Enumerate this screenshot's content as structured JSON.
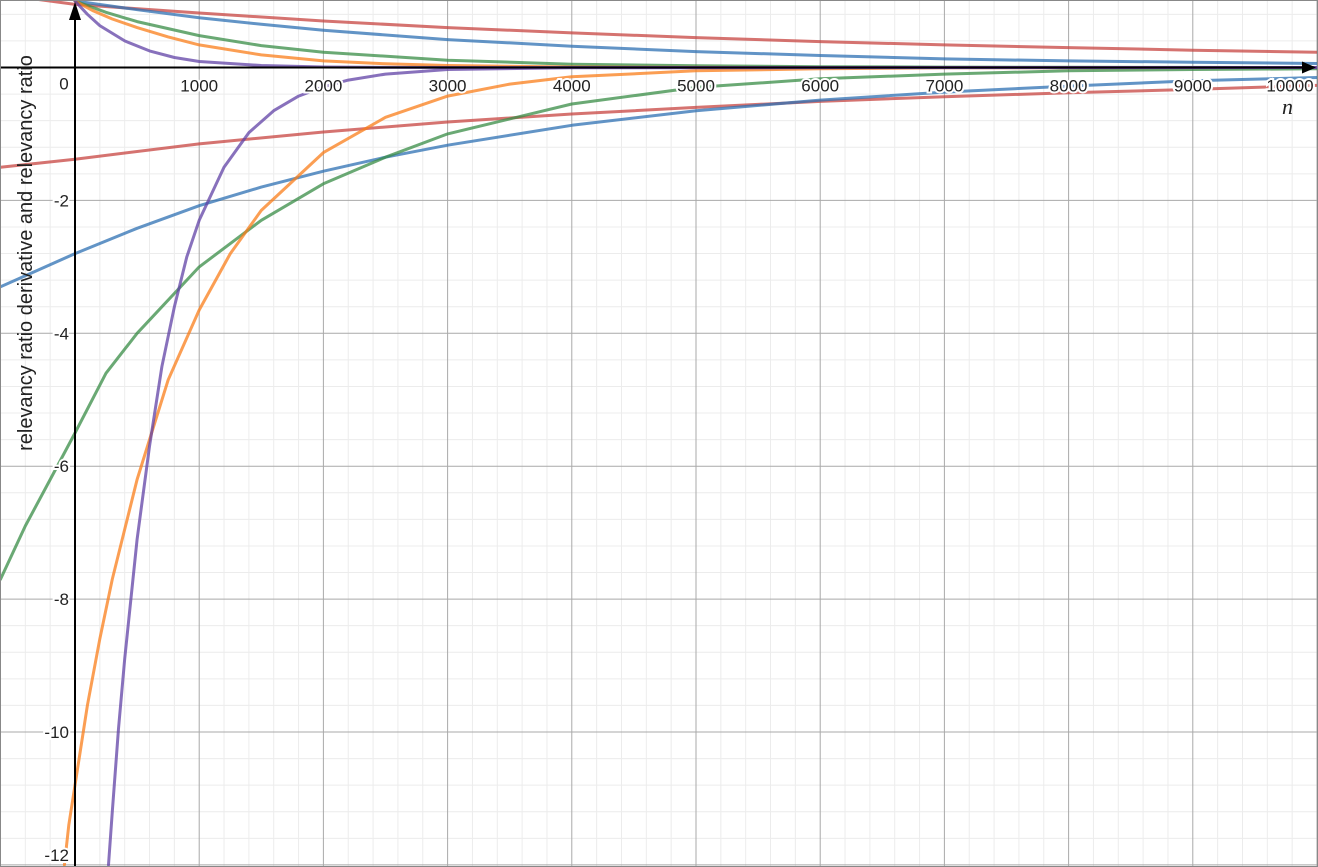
{
  "chart_data": {
    "type": "line",
    "xlabel": "n",
    "ylabel": "relevancy ratio derivative and relevancy ratio",
    "xlim": [
      -600,
      10000
    ],
    "ylim": [
      -12,
      1
    ],
    "grid": true,
    "x_ticks": [
      {
        "value": 0,
        "label": "0"
      },
      {
        "value": 1000,
        "label": "1000"
      },
      {
        "value": 2000,
        "label": "2000"
      },
      {
        "value": 3000,
        "label": "3000"
      },
      {
        "value": 4000,
        "label": "4000"
      },
      {
        "value": 5000,
        "label": "5000"
      },
      {
        "value": 6000,
        "label": "6000"
      },
      {
        "value": 7000,
        "label": "7000"
      },
      {
        "value": 8000,
        "label": "8000"
      },
      {
        "value": 9000,
        "label": "9000"
      },
      {
        "value": 10000,
        "label": "10000"
      }
    ],
    "y_ticks": [
      {
        "value": -2,
        "label": "-2"
      },
      {
        "value": -4,
        "label": "-4"
      },
      {
        "value": -6,
        "label": "-6"
      },
      {
        "value": -8,
        "label": "-8"
      },
      {
        "value": -10,
        "label": "-10"
      },
      {
        "value": -12,
        "label": "-12"
      }
    ],
    "series": [
      {
        "color": "#c74440",
        "x": [
          -600,
          0,
          1000,
          2000,
          3000,
          4000,
          5000,
          6000,
          7000,
          8000,
          9000,
          10000
        ],
        "y": [
          1.1,
          0.95,
          0.82,
          0.7,
          0.6,
          0.52,
          0.45,
          0.39,
          0.34,
          0.3,
          0.26,
          0.23
        ]
      },
      {
        "color": "#c74440",
        "x": [
          -600,
          0,
          1000,
          2000,
          3000,
          4000,
          5000,
          6000,
          7000,
          8000,
          9000,
          10000
        ],
        "y": [
          -1.5,
          -1.38,
          -1.15,
          -0.97,
          -0.82,
          -0.7,
          -0.6,
          -0.51,
          -0.44,
          -0.38,
          -0.33,
          -0.27
        ]
      },
      {
        "color": "#2d70b3",
        "x": [
          0,
          500,
          1000,
          1500,
          2000,
          3000,
          4000,
          5000,
          6000,
          7000,
          8000,
          9000,
          10000
        ],
        "y": [
          1.0,
          0.87,
          0.75,
          0.65,
          0.56,
          0.42,
          0.32,
          0.24,
          0.18,
          0.13,
          0.1,
          0.08,
          0.06
        ]
      },
      {
        "color": "#2d70b3",
        "x": [
          -600,
          -300,
          0,
          500,
          1000,
          1500,
          2000,
          2500,
          3000,
          4000,
          5000,
          6000,
          7000,
          8000,
          9000,
          10000
        ],
        "y": [
          -3.3,
          -3.05,
          -2.8,
          -2.42,
          -2.08,
          -1.8,
          -1.56,
          -1.35,
          -1.17,
          -0.87,
          -0.65,
          -0.49,
          -0.37,
          -0.28,
          -0.2,
          -0.15
        ]
      },
      {
        "color": "#388c46",
        "x": [
          0,
          250,
          500,
          1000,
          1500,
          2000,
          3000,
          4000,
          5000,
          6000,
          7000,
          8000,
          9000,
          10000
        ],
        "y": [
          1.0,
          0.83,
          0.69,
          0.48,
          0.33,
          0.23,
          0.11,
          0.05,
          0.025,
          0.012,
          0.006,
          0.003,
          0.001,
          0.0005
        ]
      },
      {
        "color": "#388c46",
        "x": [
          -600,
          -400,
          -200,
          0,
          250,
          500,
          1000,
          1500,
          2000,
          2500,
          3000,
          4000,
          5000,
          6000,
          7000,
          8000,
          9000,
          10000
        ],
        "y": [
          -7.7,
          -6.9,
          -6.2,
          -5.5,
          -4.6,
          -4.0,
          -3.0,
          -2.3,
          -1.75,
          -1.35,
          -1.0,
          -0.55,
          -0.3,
          -0.17,
          -0.1,
          -0.05,
          -0.03,
          -0.02
        ]
      },
      {
        "color": "#fa7e19",
        "x": [
          0,
          150,
          300,
          500,
          750,
          1000,
          1500,
          2000,
          2500,
          3000,
          4000,
          5000,
          6000,
          10000
        ],
        "y": [
          1.0,
          0.85,
          0.73,
          0.6,
          0.46,
          0.34,
          0.19,
          0.1,
          0.055,
          0.03,
          0.008,
          0.002,
          0.0005,
          0.0
        ]
      },
      {
        "color": "#fa7e19",
        "x": [
          -85,
          -50,
          0,
          100,
          200,
          300,
          500,
          750,
          1000,
          1250,
          1500,
          2000,
          2500,
          3000,
          3500,
          4000,
          5000,
          6000,
          7000,
          10000
        ],
        "y": [
          -12.0,
          -11.4,
          -10.8,
          -9.6,
          -8.6,
          -7.7,
          -6.2,
          -4.7,
          -3.65,
          -2.8,
          -2.15,
          -1.28,
          -0.75,
          -0.43,
          -0.25,
          -0.14,
          -0.05,
          -0.02,
          -0.005,
          0.0
        ]
      },
      {
        "color": "#6042a6",
        "x": [
          0,
          100,
          200,
          400,
          600,
          800,
          1000,
          1500,
          2000,
          2500,
          3000,
          4000,
          10000
        ],
        "y": [
          1.0,
          0.8,
          0.63,
          0.4,
          0.25,
          0.15,
          0.09,
          0.03,
          0.008,
          0.002,
          0.0005,
          0.0,
          0.0
        ]
      },
      {
        "color": "#6042a6",
        "x": [
          270,
          300,
          350,
          400,
          500,
          600,
          700,
          800,
          900,
          1000,
          1200,
          1400,
          1600,
          1800,
          2000,
          2200,
          2500,
          3000,
          4000,
          10000
        ],
        "y": [
          -12.0,
          -11.2,
          -9.95,
          -8.9,
          -7.1,
          -5.7,
          -4.5,
          -3.6,
          -2.85,
          -2.3,
          -1.5,
          -0.98,
          -0.65,
          -0.43,
          -0.29,
          -0.19,
          -0.1,
          -0.03,
          -0.005,
          0.0
        ]
      }
    ]
  }
}
